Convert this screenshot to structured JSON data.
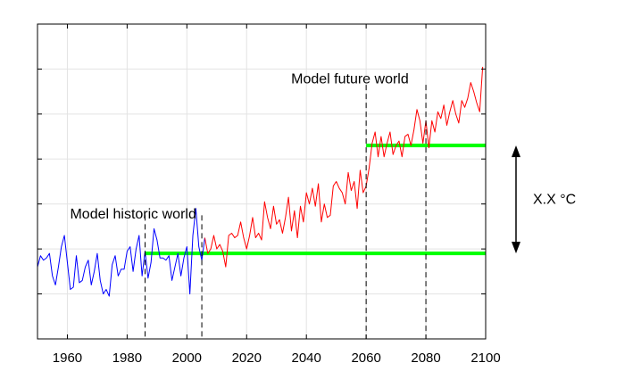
{
  "chart_data": {
    "type": "line",
    "title": "",
    "xlabel": "",
    "ylabel": "",
    "xlim": [
      1950,
      2100
    ],
    "ylim": [
      0,
      7
    ],
    "grid": true,
    "x_ticks": [
      1960,
      1980,
      2000,
      2020,
      2040,
      2060,
      2080,
      2100
    ],
    "x_tick_labels": [
      "1960",
      "1980",
      "2000",
      "2020",
      "2040",
      "2060",
      "2080",
      "2100"
    ],
    "y_ticks": [
      1,
      2,
      3,
      4,
      5,
      6
    ],
    "series": [
      {
        "color": "#0000ff",
        "x": [
          1950,
          1951,
          1952,
          1953,
          1954,
          1955,
          1956,
          1957,
          1958,
          1959,
          1960,
          1961,
          1962,
          1963,
          1964,
          1965,
          1966,
          1967,
          1968,
          1969,
          1970,
          1971,
          1972,
          1973,
          1974,
          1975,
          1976,
          1977,
          1978,
          1979,
          1980,
          1981,
          1982,
          1983,
          1984,
          1985,
          1986,
          1987,
          1988,
          1989,
          1990,
          1991,
          1992,
          1993,
          1994,
          1995,
          1996,
          1997,
          1998,
          1999,
          2000,
          2001,
          2002,
          2003,
          2004,
          2005,
          2006
        ],
        "y": [
          1.6,
          1.85,
          1.75,
          1.8,
          1.9,
          1.4,
          1.2,
          1.6,
          2.05,
          2.3,
          1.7,
          1.1,
          1.15,
          1.85,
          1.25,
          1.3,
          1.6,
          1.75,
          1.2,
          1.5,
          1.9,
          1.3,
          1.0,
          1.1,
          0.95,
          1.65,
          1.85,
          1.4,
          1.55,
          1.55,
          1.95,
          2.05,
          1.5,
          2.0,
          2.3,
          1.4,
          1.95,
          1.35,
          1.7,
          2.45,
          2.2,
          1.8,
          1.8,
          1.75,
          1.85,
          1.3,
          1.6,
          1.9,
          1.4,
          1.8,
          2.05,
          1.0,
          2.3,
          2.9,
          2.05,
          1.75,
          2.25
        ]
      },
      {
        "color": "#ff0000",
        "x": [
          2006,
          2007,
          2008,
          2009,
          2010,
          2011,
          2012,
          2013,
          2014,
          2015,
          2016,
          2017,
          2018,
          2019,
          2020,
          2021,
          2022,
          2023,
          2024,
          2025,
          2026,
          2027,
          2028,
          2029,
          2030,
          2031,
          2032,
          2033,
          2034,
          2035,
          2036,
          2037,
          2038,
          2039,
          2040,
          2041,
          2042,
          2043,
          2044,
          2045,
          2046,
          2047,
          2048,
          2049,
          2050,
          2051,
          2052,
          2053,
          2054,
          2055,
          2056,
          2057,
          2058,
          2059,
          2060,
          2061,
          2062,
          2063,
          2064,
          2065,
          2066,
          2067,
          2068,
          2069,
          2070,
          2071,
          2072,
          2073,
          2074,
          2075,
          2076,
          2077,
          2078,
          2079,
          2080,
          2081,
          2082,
          2083,
          2084,
          2085,
          2086,
          2087,
          2088,
          2089,
          2090,
          2091,
          2092,
          2093,
          2094,
          2095,
          2096,
          2097,
          2098,
          2099
        ],
        "y": [
          2.25,
          1.9,
          2.0,
          2.3,
          2.0,
          2.1,
          1.95,
          1.6,
          2.3,
          2.35,
          2.25,
          2.3,
          2.6,
          2.25,
          2.0,
          2.3,
          2.7,
          2.25,
          2.35,
          2.2,
          3.05,
          2.7,
          2.45,
          2.95,
          2.55,
          2.65,
          2.35,
          2.7,
          3.15,
          2.4,
          2.85,
          2.25,
          2.95,
          2.6,
          3.25,
          3.0,
          3.35,
          2.95,
          3.45,
          2.6,
          3.0,
          2.7,
          2.75,
          3.4,
          3.5,
          3.35,
          3.25,
          3.0,
          3.7,
          3.3,
          3.5,
          2.9,
          3.75,
          3.25,
          3.4,
          3.8,
          4.35,
          4.6,
          4.05,
          4.5,
          4.05,
          4.35,
          4.6,
          4.1,
          4.3,
          4.4,
          4.05,
          4.5,
          4.55,
          4.3,
          4.65,
          5.1,
          4.85,
          4.35,
          4.85,
          4.25,
          4.85,
          4.6,
          5.05,
          4.9,
          5.2,
          4.75,
          5.05,
          5.3,
          5.0,
          4.8,
          5.3,
          5.15,
          5.35,
          5.7,
          5.5,
          5.25,
          5.05,
          6.05
        ]
      }
    ],
    "thresholds": [
      {
        "y": 1.9,
        "x_start": 1986,
        "x_end": 2100,
        "color": "#00ff00"
      },
      {
        "y": 4.3,
        "x_start": 2060,
        "x_end": 2100,
        "color": "#00ff00"
      }
    ],
    "markers": [
      1986,
      2005,
      2060,
      2080
    ],
    "annotations": [
      {
        "text": "Model historic world",
        "x": 1986,
        "y": 2.8
      },
      {
        "text": "Model future world",
        "x": 2060,
        "y": 5.8
      }
    ],
    "side_arrow": {
      "label": "X.X °C",
      "y_top": 4.3,
      "y_bottom": 1.9
    }
  }
}
